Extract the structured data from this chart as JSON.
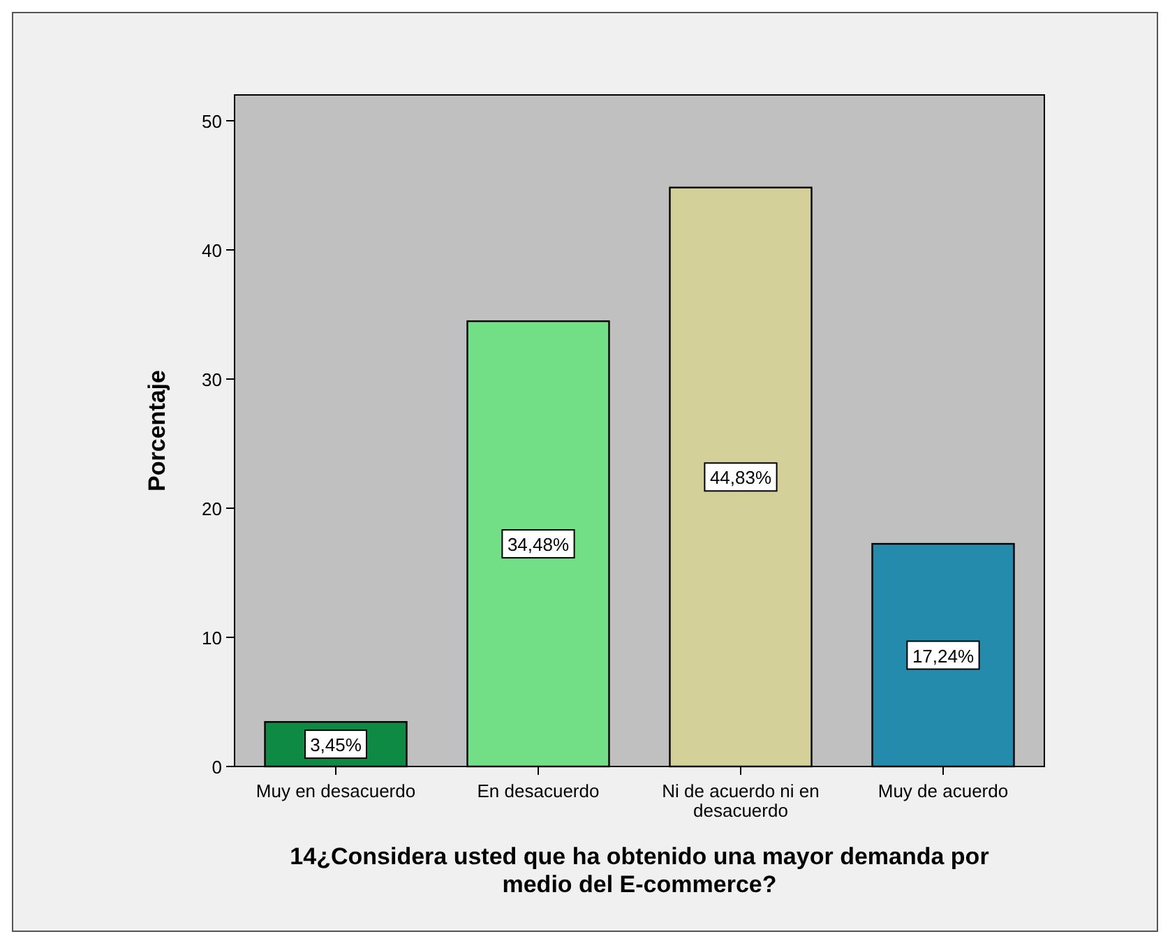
{
  "chart_data": {
    "type": "bar",
    "categories": [
      "Muy en desacuerdo",
      "En desacuerdo",
      "Ni de acuerdo ni en desacuerdo",
      "Muy de acuerdo"
    ],
    "values": [
      3.45,
      34.48,
      44.83,
      17.24
    ],
    "colors": [
      "#0f8a45",
      "#72de86",
      "#d4d09a",
      "#258bad"
    ],
    "value_labels": [
      "3,45%",
      "34,48%",
      "44,83%",
      "17,24%"
    ],
    "ylabel": "Porcentaje",
    "xlabel": "14¿Considera usted que ha obtenido una mayor demanda por medio del E-commerce?",
    "ylim": [
      0,
      52
    ],
    "yticks": [
      0,
      10,
      20,
      30,
      40,
      50
    ],
    "grid": false
  }
}
